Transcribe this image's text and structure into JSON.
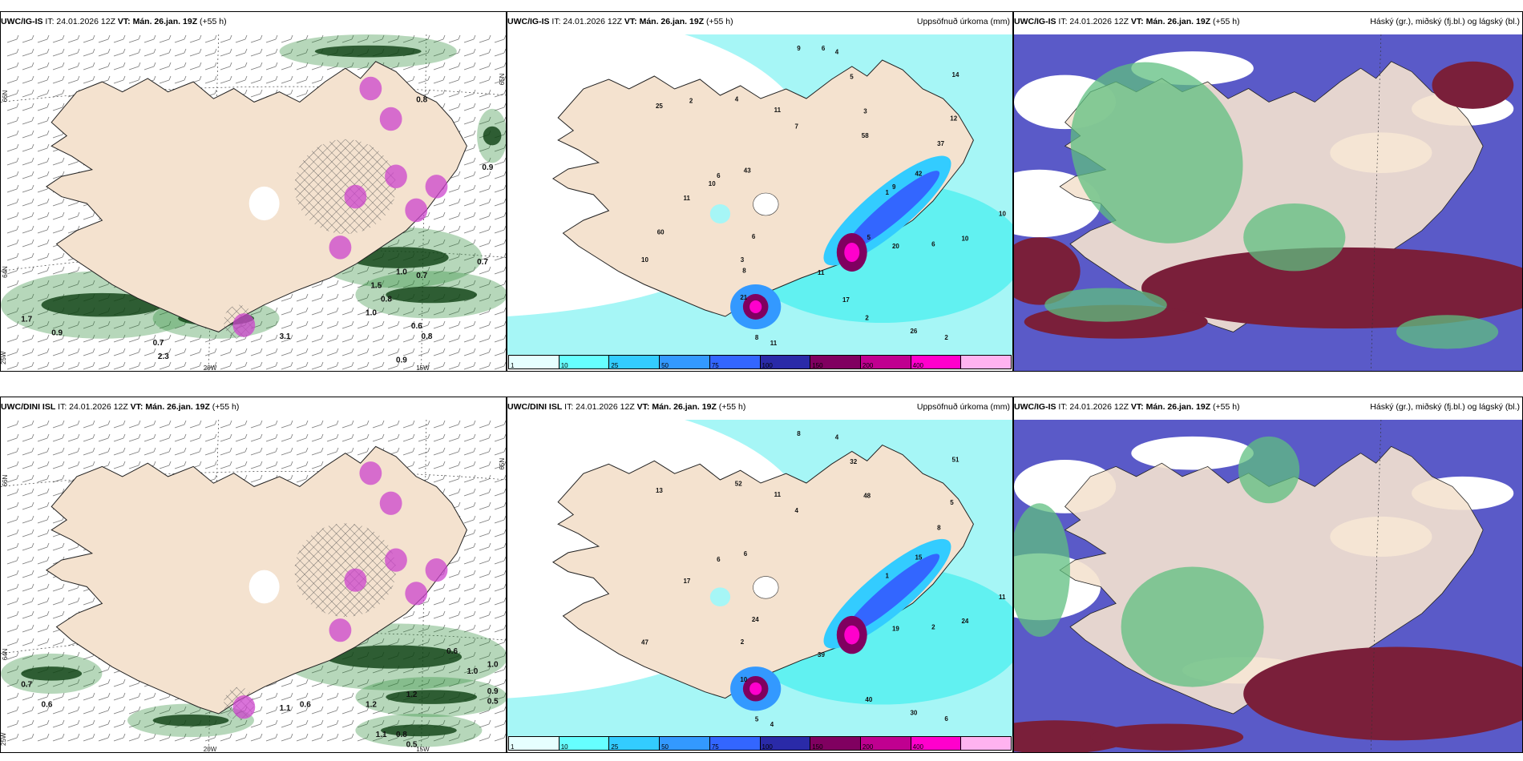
{
  "rows": [
    {
      "panels": [
        {
          "type": "wind",
          "title_bold": "UWC/IG-IS",
          "title_it": " IT: 24.01.2026 12Z ",
          "title_vt": "VT: Mán. 26.jan. 19Z",
          "title_lead": " (+55 h)"
        },
        {
          "type": "precip",
          "title_bold": "UWC/IG-IS",
          "title_it": " IT: 24.01.2026 12Z ",
          "title_vt": "VT: Mán. 26.jan. 19Z",
          "title_lead": " (+55 h)",
          "right": "Uppsöfnuð úrkoma (mm)"
        },
        {
          "type": "cloud",
          "title_bold": "UWC/IG-IS",
          "title_it": " IT: 24.01.2026 12Z ",
          "title_vt": "VT: Mán. 26.jan. 19Z",
          "title_lead": " (+55 h)",
          "right": "Háský (gr.), miðský (fj.bl.) og lágský (bl.)"
        }
      ]
    },
    {
      "panels": [
        {
          "type": "wind",
          "title_bold": "UWC/DINI ISL",
          "title_it": " IT: 24.01.2026 12Z ",
          "title_vt": "VT: Mán. 26.jan. 19Z",
          "title_lead": " (+55 h)"
        },
        {
          "type": "precip",
          "title_bold": "UWC/DINI ISL",
          "title_it": " IT: 24.01.2026 12Z ",
          "title_vt": "VT: Mán. 26.jan. 19Z",
          "title_lead": " (+55 h)",
          "right": "Uppsöfnuð úrkoma (mm)"
        },
        {
          "type": "cloud",
          "title_bold": "UWC/IG-IS",
          "title_it": " IT: 24.01.2026 12Z ",
          "title_vt": "VT: Mán. 26.jan. 19Z",
          "title_lead": " (+55 h)",
          "right": "Háský (gr.), miðský (fj.bl.) og lágský (bl.)"
        }
      ]
    }
  ],
  "axis_labels": {
    "lat66": "66N",
    "lat64": "64N",
    "lat65": "65N",
    "lon20": "20W",
    "lon15": "15W",
    "lon25": "25W"
  },
  "colorbar": {
    "ticks": [
      "1",
      "10",
      "25",
      "50",
      "75",
      "100",
      "150",
      "200",
      "400"
    ],
    "colors": [
      "#e6ffff",
      "#66ffff",
      "#33ccff",
      "#3399ff",
      "#3366ff",
      "#2a2aa8",
      "#800060",
      "#c00090",
      "#ff00cc",
      "#ffb3f0"
    ]
  },
  "wind_labels_top": [
    "0.7",
    "1.7",
    "0.9",
    "0.7",
    "2.3",
    "3.1",
    "0.9",
    "1.5",
    "0.8",
    "1.0",
    "0.6",
    "0.8",
    "0.7",
    "1.0",
    "0.9",
    "0.8"
  ],
  "wind_labels_bottom": [
    "0.7",
    "0.6",
    "1.1",
    "0.6",
    "1.2",
    "1.2",
    "0.6",
    "1.0",
    "0.5",
    "0.8",
    "1.1",
    "0.5",
    "0.9",
    "1.0"
  ],
  "precip_labels_top": [
    "1",
    "3",
    "4",
    "2",
    "6",
    "12",
    "11",
    "11",
    "10",
    "10",
    "3",
    "2",
    "25",
    "42",
    "21",
    "9",
    "20",
    "11",
    "14",
    "11",
    "4",
    "10",
    "6",
    "5",
    "26",
    "43",
    "37",
    "8",
    "7",
    "6",
    "60",
    "58",
    "17",
    "2",
    "9",
    "8",
    "6",
    "5",
    "10"
  ],
  "precip_labels_bottom": [
    "1",
    "2",
    "4",
    "6",
    "6",
    "5",
    "4",
    "11",
    "24",
    "47",
    "48",
    "40",
    "13",
    "15",
    "10",
    "8",
    "19",
    "17",
    "51",
    "39",
    "52",
    "11",
    "24",
    "32",
    "30",
    "6",
    "8",
    "5",
    "4",
    "2"
  ],
  "colors": {
    "land": "#f4e2cf",
    "wind_green": "#2e8b3a",
    "precip_cyan": "#a6f6f6",
    "cloud_blue": "#5a5ac8",
    "cloud_red": "#7a1f3a",
    "cloud_green": "#5fbf80"
  }
}
